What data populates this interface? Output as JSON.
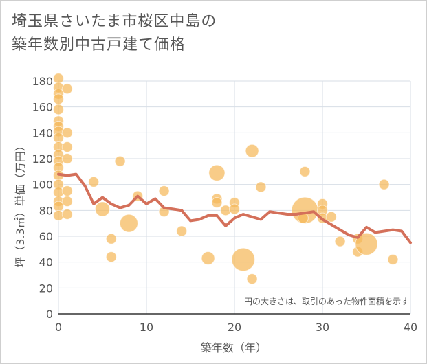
{
  "title_lines": [
    "埼玉県さいたま市桜区中島の",
    "築年数別中古戸建て価格"
  ],
  "chart_data": {
    "type": "scatter",
    "title": "埼玉県さいたま市桜区中島の築年数別中古戸建て価格",
    "xlabel": "築年数（年）",
    "ylabel": "坪（3.3㎡）単価（万円）",
    "xlim": [
      0,
      40
    ],
    "ylim": [
      0,
      180
    ],
    "x_ticks": [
      0,
      10,
      20,
      30,
      40
    ],
    "y_ticks": [
      0,
      20,
      40,
      60,
      80,
      100,
      120,
      140,
      160,
      180
    ],
    "grid": true,
    "annotation": "円の大きさは、取引のあった物件面積を示す",
    "colors": {
      "bubble": "#f5b95a",
      "line": "#d4705a",
      "grid": "#d7dee6"
    },
    "bubbles": [
      {
        "x": 0,
        "y": 182,
        "s": 1
      },
      {
        "x": 0,
        "y": 175,
        "s": 1
      },
      {
        "x": 0,
        "y": 170,
        "s": 1
      },
      {
        "x": 0,
        "y": 166,
        "s": 1
      },
      {
        "x": 0,
        "y": 158,
        "s": 1
      },
      {
        "x": 0,
        "y": 149,
        "s": 1
      },
      {
        "x": 0,
        "y": 145,
        "s": 1
      },
      {
        "x": 0,
        "y": 141,
        "s": 1
      },
      {
        "x": 0,
        "y": 136,
        "s": 1
      },
      {
        "x": 0,
        "y": 129,
        "s": 1
      },
      {
        "x": 0,
        "y": 123,
        "s": 1
      },
      {
        "x": 0,
        "y": 118,
        "s": 1
      },
      {
        "x": 0,
        "y": 113,
        "s": 1
      },
      {
        "x": 0,
        "y": 107,
        "s": 1
      },
      {
        "x": 0,
        "y": 100,
        "s": 1
      },
      {
        "x": 0,
        "y": 94,
        "s": 1
      },
      {
        "x": 0,
        "y": 87,
        "s": 1
      },
      {
        "x": 0,
        "y": 83,
        "s": 1
      },
      {
        "x": 0,
        "y": 76,
        "s": 1
      },
      {
        "x": 1,
        "y": 174,
        "s": 1
      },
      {
        "x": 1,
        "y": 140,
        "s": 1
      },
      {
        "x": 1,
        "y": 129,
        "s": 1
      },
      {
        "x": 1,
        "y": 120,
        "s": 1
      },
      {
        "x": 1,
        "y": 95,
        "s": 1
      },
      {
        "x": 1,
        "y": 87,
        "s": 1
      },
      {
        "x": 1,
        "y": 77,
        "s": 1
      },
      {
        "x": 4,
        "y": 102,
        "s": 1
      },
      {
        "x": 5,
        "y": 81,
        "s": 2
      },
      {
        "x": 6,
        "y": 58,
        "s": 1
      },
      {
        "x": 6,
        "y": 44,
        "s": 1
      },
      {
        "x": 7,
        "y": 118,
        "s": 1
      },
      {
        "x": 8,
        "y": 70,
        "s": 3
      },
      {
        "x": 9,
        "y": 91,
        "s": 1
      },
      {
        "x": 12,
        "y": 95,
        "s": 1
      },
      {
        "x": 12,
        "y": 79,
        "s": 1
      },
      {
        "x": 14,
        "y": 64,
        "s": 1
      },
      {
        "x": 17,
        "y": 43,
        "s": 1.6
      },
      {
        "x": 18,
        "y": 109,
        "s": 2.4
      },
      {
        "x": 18,
        "y": 89,
        "s": 1
      },
      {
        "x": 18,
        "y": 86,
        "s": 1
      },
      {
        "x": 19,
        "y": 80,
        "s": 1
      },
      {
        "x": 20,
        "y": 86,
        "s": 1
      },
      {
        "x": 20,
        "y": 81,
        "s": 1
      },
      {
        "x": 21,
        "y": 42,
        "s": 5
      },
      {
        "x": 22,
        "y": 126,
        "s": 1.6
      },
      {
        "x": 22,
        "y": 27,
        "s": 1
      },
      {
        "x": 23,
        "y": 98,
        "s": 1
      },
      {
        "x": 28,
        "y": 80,
        "s": 6.6
      },
      {
        "x": 28,
        "y": 110,
        "s": 1
      },
      {
        "x": 27.8,
        "y": 74,
        "s": 1
      },
      {
        "x": 30,
        "y": 85,
        "s": 1
      },
      {
        "x": 30,
        "y": 80,
        "s": 1
      },
      {
        "x": 30,
        "y": 74,
        "s": 1
      },
      {
        "x": 31,
        "y": 75,
        "s": 1
      },
      {
        "x": 32,
        "y": 56,
        "s": 1
      },
      {
        "x": 34,
        "y": 58,
        "s": 1
      },
      {
        "x": 34,
        "y": 48,
        "s": 1
      },
      {
        "x": 35,
        "y": 54,
        "s": 4.6
      },
      {
        "x": 37,
        "y": 100,
        "s": 1
      },
      {
        "x": 38,
        "y": 42,
        "s": 1
      }
    ],
    "trend_line": {
      "x": [
        0,
        1,
        2,
        3,
        4,
        5,
        6,
        7,
        8,
        9,
        10,
        11,
        12,
        13,
        14,
        15,
        16,
        17,
        18,
        19,
        20,
        21,
        22,
        23,
        24,
        25,
        26,
        27,
        28,
        29,
        30,
        31,
        32,
        33,
        34,
        35,
        36,
        37,
        38,
        39,
        40
      ],
      "y": [
        108,
        107,
        108,
        99,
        85,
        90,
        85,
        82,
        84,
        91,
        85,
        89,
        82,
        81,
        80,
        72,
        73,
        76,
        76,
        68,
        74,
        77,
        75,
        73,
        79,
        78,
        77,
        77,
        78,
        79,
        73,
        69,
        65,
        61,
        59,
        67,
        63,
        64,
        65,
        64,
        55
      ]
    }
  }
}
